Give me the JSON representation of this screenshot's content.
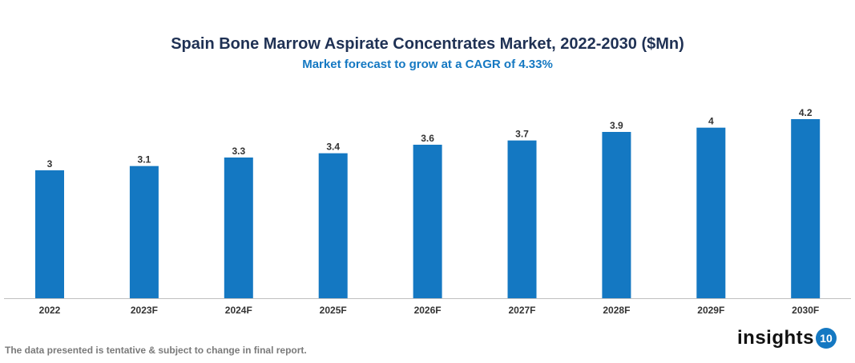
{
  "chart_data": {
    "type": "bar",
    "title": "Spain Bone Marrow Aspirate Concentrates Market, 2022-2030 ($Mn)",
    "subtitle": "Market forecast to grow at a CAGR of 4.33%",
    "categories": [
      "2022",
      "2023F",
      "2024F",
      "2025F",
      "2026F",
      "2027F",
      "2028F",
      "2029F",
      "2030F"
    ],
    "values": [
      3,
      3.1,
      3.3,
      3.4,
      3.6,
      3.7,
      3.9,
      4,
      4.2
    ],
    "data_labels": [
      "3",
      "3.1",
      "3.3",
      "3.4",
      "3.6",
      "3.7",
      "3.9",
      "4",
      "4.2"
    ],
    "xlabel": "",
    "ylabel": "",
    "ylim": [
      0,
      4.2
    ],
    "grid": false,
    "bar_color": "#1478c2"
  },
  "footer": {
    "note": "The data presented is tentative & subject to change in final report.",
    "logo_text": "insights",
    "logo_badge": "10"
  }
}
